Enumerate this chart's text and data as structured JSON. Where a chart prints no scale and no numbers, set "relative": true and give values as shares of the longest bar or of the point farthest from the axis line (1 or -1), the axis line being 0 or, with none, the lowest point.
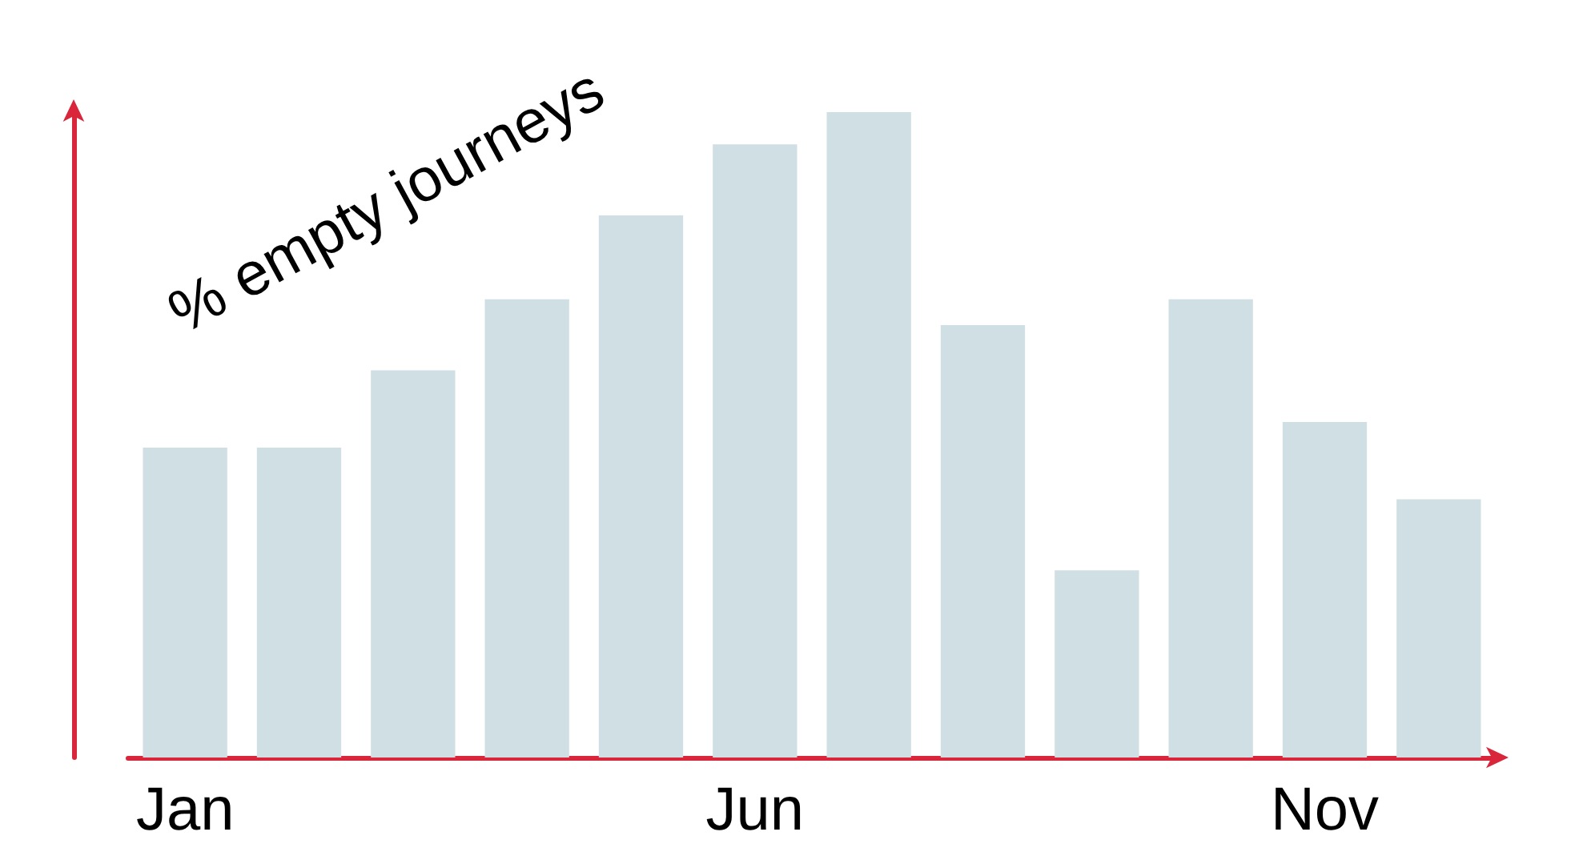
{
  "chart_data": {
    "type": "bar",
    "ylabel": "% empty journeys",
    "relative": true,
    "color": "#d0dfe3",
    "categories": [
      "Jan",
      null,
      null,
      null,
      null,
      "Jun",
      null,
      null,
      null,
      null,
      "Nov",
      null
    ],
    "values": [
      0.48,
      0.48,
      0.6,
      0.71,
      0.84,
      0.95,
      1,
      0.67,
      0.29,
      0.71,
      0.52,
      0.4
    ]
  }
}
